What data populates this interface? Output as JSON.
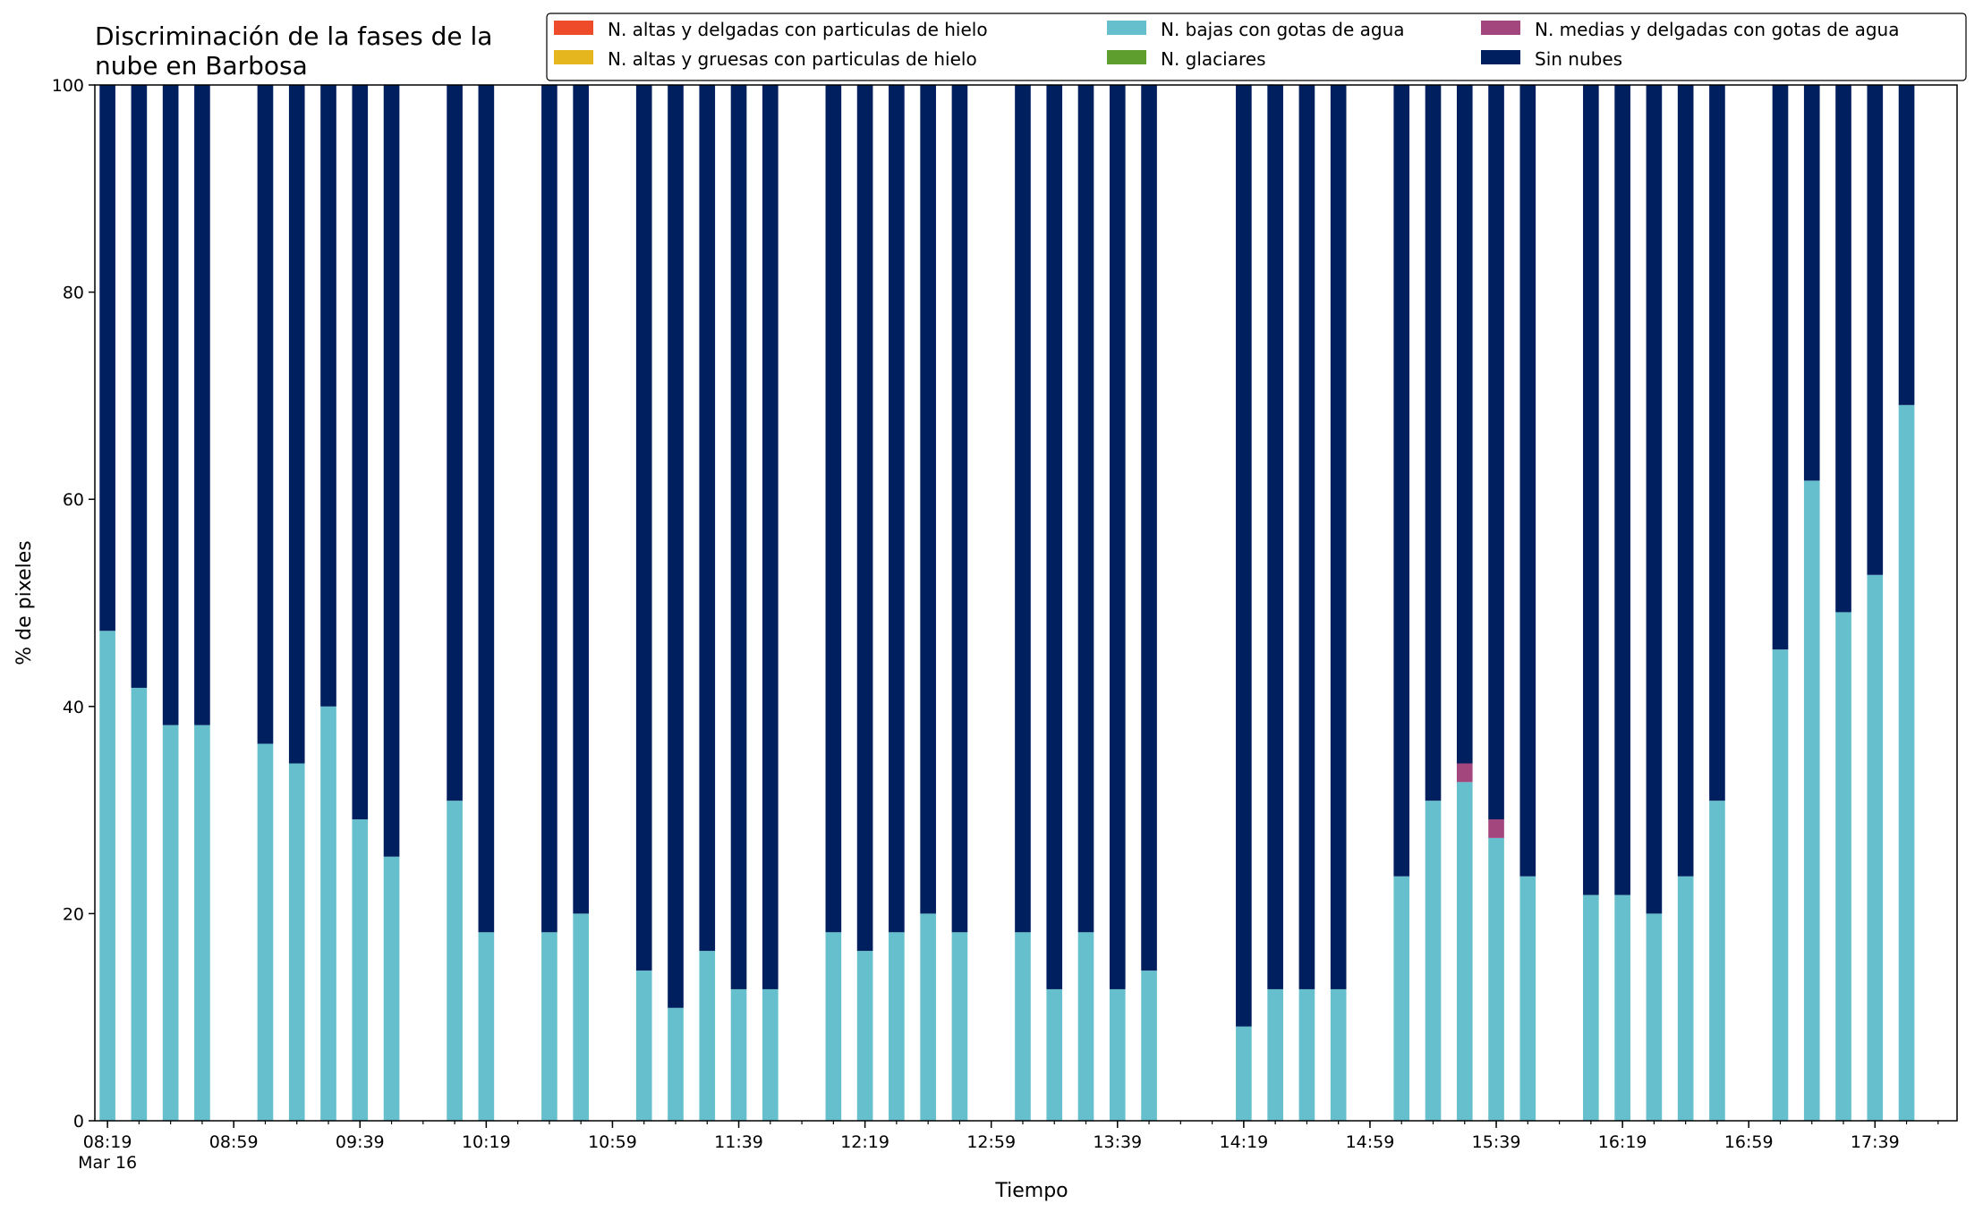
{
  "chart_data": {
    "type": "bar",
    "stacked": true,
    "title_lines": [
      "Discriminación de la fases de la",
      "nube en Barbosa"
    ],
    "xlabel": "Tiempo",
    "ylabel": "% de pixeles",
    "ylim": [
      0,
      100
    ],
    "yticks": [
      "0",
      "20",
      "40",
      "60",
      "80",
      "100"
    ],
    "x_range": [
      "08:15",
      "18:05"
    ],
    "x_step_minutes": 10,
    "x_major_ticks": [
      {
        "time": "08:19",
        "label": "08:19",
        "sublabel": "Mar 16"
      },
      {
        "time": "08:59",
        "label": "08:59"
      },
      {
        "time": "09:39",
        "label": "09:39"
      },
      {
        "time": "10:19",
        "label": "10:19"
      },
      {
        "time": "10:59",
        "label": "10:59"
      },
      {
        "time": "11:39",
        "label": "11:39"
      },
      {
        "time": "12:19",
        "label": "12:19"
      },
      {
        "time": "12:59",
        "label": "12:59"
      },
      {
        "time": "13:39",
        "label": "13:39"
      },
      {
        "time": "14:19",
        "label": "14:19"
      },
      {
        "time": "14:59",
        "label": "14:59"
      },
      {
        "time": "15:39",
        "label": "15:39"
      },
      {
        "time": "16:19",
        "label": "16:19"
      },
      {
        "time": "16:59",
        "label": "16:59"
      },
      {
        "time": "17:39",
        "label": "17:39"
      }
    ],
    "legend_placement": "top-right",
    "legend": [
      {
        "name": "N. altas y delgadas con particulas de hielo",
        "color": "#ee4b2b"
      },
      {
        "name": "N. altas y gruesas con particulas de hielo",
        "color": "#e5b61e"
      },
      {
        "name": "N. bajas con gotas de agua",
        "color": "#66bfcc"
      },
      {
        "name": "N. glaciares",
        "color": "#5e9e2f"
      },
      {
        "name": "N. medias y delgadas con gotas de agua",
        "color": "#a3467e"
      },
      {
        "name": "Sin nubes",
        "color": "#001f5f"
      }
    ],
    "x": [
      "08:19",
      "08:29",
      "08:39",
      "08:49",
      "09:09",
      "09:19",
      "09:29",
      "09:39",
      "09:49",
      "10:09",
      "10:19",
      "10:39",
      "10:49",
      "11:09",
      "11:19",
      "11:29",
      "11:39",
      "11:49",
      "12:09",
      "12:19",
      "12:29",
      "12:39",
      "12:49",
      "13:09",
      "13:19",
      "13:29",
      "13:39",
      "13:49",
      "14:19",
      "14:29",
      "14:39",
      "14:49",
      "15:09",
      "15:19",
      "15:29",
      "15:39",
      "15:49",
      "16:09",
      "16:19",
      "16:29",
      "16:39",
      "16:49",
      "17:09",
      "17:19",
      "17:29",
      "17:39",
      "17:49"
    ],
    "series": [
      {
        "name": "N. bajas con gotas de agua",
        "color": "#66bfcc",
        "values": [
          47.3,
          41.8,
          38.2,
          38.2,
          36.4,
          34.5,
          40.0,
          29.1,
          25.5,
          30.9,
          18.2,
          18.2,
          20.0,
          14.5,
          10.9,
          16.4,
          12.7,
          12.7,
          18.2,
          16.4,
          18.2,
          20.0,
          18.2,
          18.2,
          12.7,
          18.2,
          12.7,
          14.5,
          9.1,
          12.7,
          12.7,
          12.7,
          23.6,
          30.9,
          32.7,
          27.3,
          23.6,
          21.8,
          21.8,
          20.0,
          23.6,
          30.9,
          45.5,
          61.8,
          49.1,
          52.7,
          69.1
        ]
      },
      {
        "name": "N. medias y delgadas con gotas de agua",
        "color": "#a3467e",
        "values": [
          0,
          0,
          0,
          0,
          0,
          0,
          0,
          0,
          0,
          0,
          0,
          0,
          0,
          0,
          0,
          0,
          0,
          0,
          0,
          0,
          0,
          0,
          0,
          0,
          0,
          0,
          0,
          0,
          0,
          0,
          0,
          0,
          0,
          0,
          1.8,
          1.8,
          0,
          0,
          0,
          0,
          0,
          0,
          0,
          0,
          0,
          0,
          0
        ]
      },
      {
        "name": "Sin nubes",
        "color": "#001f5f",
        "values": [
          52.7,
          58.2,
          61.8,
          61.8,
          63.6,
          65.5,
          60.0,
          70.9,
          74.5,
          69.1,
          81.8,
          81.8,
          80.0,
          85.5,
          89.1,
          83.6,
          87.3,
          87.3,
          81.8,
          83.6,
          81.8,
          80.0,
          81.8,
          81.8,
          87.3,
          81.8,
          87.3,
          85.5,
          90.9,
          87.3,
          87.3,
          87.3,
          76.4,
          69.1,
          65.5,
          70.9,
          76.4,
          78.2,
          78.2,
          80.0,
          76.4,
          69.1,
          54.5,
          38.2,
          50.9,
          47.3,
          30.9
        ]
      }
    ]
  }
}
